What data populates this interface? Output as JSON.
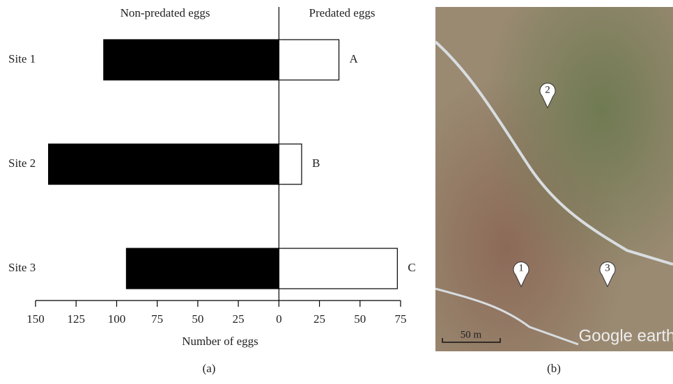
{
  "chart_data": {
    "type": "diverging_bar",
    "xlabel": "Number of eggs",
    "categories": [
      "Site 1",
      "Site 2",
      "Site 3"
    ],
    "series": [
      {
        "name": "Non-predated eggs",
        "color": "#000000",
        "values": [
          108,
          142,
          94
        ]
      },
      {
        "name": "Predated eggs",
        "color": "#ffffff",
        "values": [
          37,
          14,
          73
        ]
      }
    ],
    "annotations": [
      "A",
      "B",
      "C"
    ],
    "xlim": [
      -150,
      75
    ],
    "xticks": [
      {
        "value": -150,
        "label": "150"
      },
      {
        "value": -125,
        "label": "125"
      },
      {
        "value": -100,
        "label": "100"
      },
      {
        "value": -75,
        "label": "75"
      },
      {
        "value": -50,
        "label": "50"
      },
      {
        "value": -25,
        "label": "25"
      },
      0,
      25,
      50,
      75
    ],
    "caption": "(a)"
  },
  "image": {
    "markers": [
      "1",
      "2",
      "3"
    ],
    "scale_label": "50 m",
    "watermark": "Google earth",
    "caption": "(b)"
  }
}
